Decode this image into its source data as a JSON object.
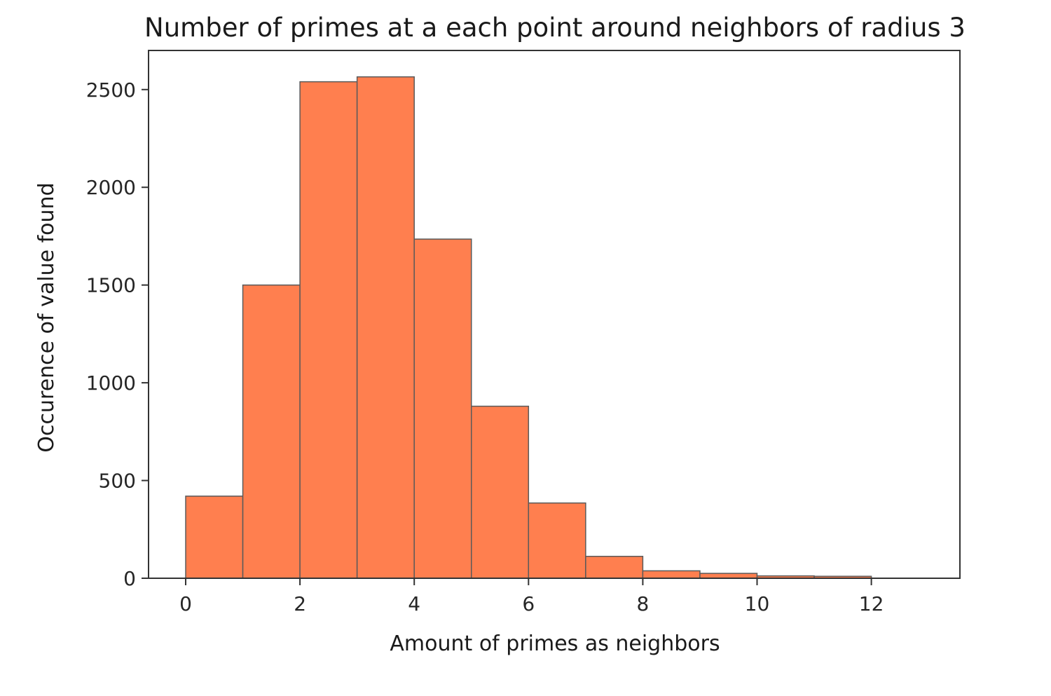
{
  "chart_data": {
    "type": "bar",
    "title": "Number of primes at a each point around neighbors of radius 3",
    "xlabel": "Amount of primes as neighbors",
    "ylabel": "Occurence of value found",
    "bins": [
      {
        "x0": 0,
        "x1": 1,
        "value": 420
      },
      {
        "x0": 1,
        "x1": 2,
        "value": 1500
      },
      {
        "x0": 2,
        "x1": 3,
        "value": 2540
      },
      {
        "x0": 3,
        "x1": 4,
        "value": 2565
      },
      {
        "x0": 4,
        "x1": 5,
        "value": 1735
      },
      {
        "x0": 5,
        "x1": 6,
        "value": 880
      },
      {
        "x0": 6,
        "x1": 7,
        "value": 385
      },
      {
        "x0": 7,
        "x1": 8,
        "value": 112
      },
      {
        "x0": 8,
        "x1": 9,
        "value": 38
      },
      {
        "x0": 9,
        "x1": 10,
        "value": 25
      },
      {
        "x0": 10,
        "x1": 11,
        "value": 12
      },
      {
        "x0": 11,
        "x1": 12,
        "value": 10
      }
    ],
    "xlim": [
      -0.65,
      13.55
    ],
    "ylim": [
      0,
      2700
    ],
    "xticks": [
      0,
      2,
      4,
      6,
      8,
      10,
      12
    ],
    "yticks": [
      0,
      500,
      1000,
      1500,
      2000,
      2500
    ],
    "bar_color": "#ff7f4f",
    "grid": false,
    "legend": "none"
  }
}
